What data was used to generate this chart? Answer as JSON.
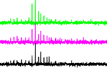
{
  "background_color": "#ffffff",
  "line_colors": [
    "#00ff00",
    "#ff00ff",
    "#000000"
  ],
  "offsets": [
    0.72,
    0.44,
    0.12
  ],
  "noise_scale": [
    0.012,
    0.014,
    0.012
  ],
  "peak_positions": [
    0.3,
    0.33,
    0.36,
    0.38,
    0.41,
    0.44,
    0.46,
    0.48
  ],
  "peak_heights_green": [
    0.28,
    0.85,
    0.18,
    0.12,
    0.1,
    0.08,
    0.06,
    0.05
  ],
  "peak_heights_magenta": [
    0.22,
    0.7,
    0.15,
    0.18,
    0.12,
    0.1,
    0.08,
    0.06
  ],
  "peak_heights_black": [
    0.15,
    0.55,
    0.12,
    0.2,
    0.1,
    0.08,
    0.14,
    0.05
  ],
  "extra_peaks_pos": [
    0.1,
    0.13,
    0.16,
    0.2,
    0.24,
    0.27,
    0.52,
    0.56,
    0.61,
    0.67,
    0.72,
    0.78,
    0.85,
    0.9
  ],
  "extra_peaks_h_g": [
    0.05,
    0.04,
    0.06,
    0.05,
    0.04,
    0.07,
    0.05,
    0.04,
    0.03,
    0.04,
    0.03,
    0.03,
    0.04,
    0.03
  ],
  "extra_peaks_h_m": [
    0.06,
    0.05,
    0.07,
    0.06,
    0.05,
    0.06,
    0.05,
    0.04,
    0.04,
    0.04,
    0.03,
    0.03,
    0.03,
    0.03
  ],
  "extra_peaks_h_b": [
    0.05,
    0.04,
    0.05,
    0.05,
    0.04,
    0.05,
    0.04,
    0.03,
    0.03,
    0.03,
    0.02,
    0.02,
    0.03,
    0.02
  ],
  "n_points": 1200,
  "figsize": [
    1.56,
    1.11
  ],
  "dpi": 100,
  "ylim": [
    -0.05,
    1.05
  ],
  "xlim": [
    0.0,
    1.0
  ],
  "linewidth": 0.5,
  "peak_sigma": 0.0008,
  "extra_sigma": 0.0012
}
